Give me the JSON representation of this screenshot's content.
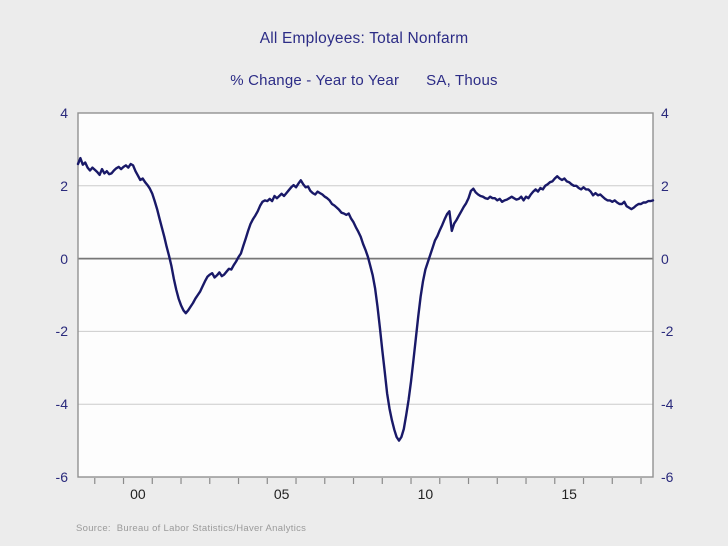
{
  "chart_data": {
    "type": "line",
    "title": "All Employees: Total Nonfarm",
    "subtitle_left": "% Change - Year to Year",
    "subtitle_right": "SA, Thous",
    "source": "Source:  Bureau of Labor Statistics/Haver Analytics",
    "xlabel": "",
    "ylabel": "",
    "ylim": [
      -6,
      4
    ],
    "xlim": [
      1998.4167,
      2018.4167
    ],
    "grid": "horizontal-only",
    "legend": "none",
    "yticks": [
      4,
      2,
      0,
      -2,
      -4,
      -6
    ],
    "ytick_labels": [
      "4",
      "2",
      "0",
      "-2",
      "-4",
      "-6"
    ],
    "yticks_both_sides": true,
    "xticks_minor": [
      1999,
      2000,
      2001,
      2002,
      2003,
      2004,
      2005,
      2006,
      2007,
      2008,
      2009,
      2010,
      2011,
      2012,
      2013,
      2014,
      2015,
      2016,
      2017,
      2018
    ],
    "xtick_labels": [
      {
        "label": "00",
        "x": 2000.5
      },
      {
        "label": "05",
        "x": 2005.5
      },
      {
        "label": "10",
        "x": 2010.5
      },
      {
        "label": "15",
        "x": 2015.5
      }
    ],
    "colors": {
      "line": "#191968",
      "title": "#2c2c86",
      "y_labels": "#2a2a7c",
      "x_labels": "#222222",
      "page_bg": "#ececec",
      "plot_bg": "#fdfdfd",
      "grid": "#cbcbcb",
      "zero_line": "#777777",
      "frame": "#919191",
      "source": "#9a9a9a"
    },
    "series": [
      {
        "name": "All Employees: Total Nonfarm, % Change Year to Year (SA)",
        "color": "#191968",
        "frequency": "monthly",
        "x_start": 1998.4167,
        "x_step": 0.0833333,
        "values": [
          2.6,
          2.76,
          2.58,
          2.64,
          2.5,
          2.42,
          2.5,
          2.44,
          2.38,
          2.3,
          2.46,
          2.34,
          2.4,
          2.32,
          2.34,
          2.42,
          2.48,
          2.52,
          2.46,
          2.52,
          2.56,
          2.5,
          2.6,
          2.56,
          2.4,
          2.28,
          2.16,
          2.2,
          2.1,
          2.02,
          1.92,
          1.78,
          1.58,
          1.36,
          1.1,
          0.85,
          0.6,
          0.33,
          0.08,
          -0.2,
          -0.55,
          -0.85,
          -1.1,
          -1.28,
          -1.42,
          -1.5,
          -1.42,
          -1.32,
          -1.22,
          -1.1,
          -1.0,
          -0.9,
          -0.76,
          -0.62,
          -0.5,
          -0.44,
          -0.4,
          -0.52,
          -0.46,
          -0.38,
          -0.48,
          -0.44,
          -0.36,
          -0.28,
          -0.3,
          -0.18,
          -0.08,
          0.04,
          0.14,
          0.35,
          0.55,
          0.76,
          0.95,
          1.08,
          1.18,
          1.3,
          1.45,
          1.56,
          1.6,
          1.58,
          1.64,
          1.58,
          1.72,
          1.66,
          1.72,
          1.78,
          1.72,
          1.8,
          1.88,
          1.96,
          2.02,
          1.96,
          2.06,
          2.15,
          2.04,
          1.96,
          1.98,
          1.86,
          1.8,
          1.76,
          1.84,
          1.8,
          1.76,
          1.7,
          1.66,
          1.6,
          1.5,
          1.46,
          1.4,
          1.34,
          1.26,
          1.24,
          1.2,
          1.24,
          1.1,
          1.0,
          0.86,
          0.74,
          0.6,
          0.4,
          0.24,
          0.05,
          -0.2,
          -0.46,
          -0.82,
          -1.32,
          -1.9,
          -2.52,
          -3.1,
          -3.7,
          -4.12,
          -4.44,
          -4.7,
          -4.9,
          -5.0,
          -4.9,
          -4.68,
          -4.3,
          -3.88,
          -3.38,
          -2.8,
          -2.2,
          -1.6,
          -1.05,
          -0.62,
          -0.3,
          -0.1,
          0.1,
          0.3,
          0.5,
          0.62,
          0.78,
          0.92,
          1.08,
          1.22,
          1.3,
          0.76,
          0.96,
          1.06,
          1.18,
          1.3,
          1.42,
          1.52,
          1.66,
          1.86,
          1.92,
          1.82,
          1.76,
          1.72,
          1.7,
          1.66,
          1.64,
          1.7,
          1.66,
          1.66,
          1.6,
          1.64,
          1.56,
          1.6,
          1.62,
          1.66,
          1.7,
          1.66,
          1.62,
          1.64,
          1.7,
          1.6,
          1.7,
          1.66,
          1.76,
          1.84,
          1.9,
          1.84,
          1.94,
          1.9,
          2.0,
          2.04,
          2.1,
          2.12,
          2.2,
          2.26,
          2.2,
          2.16,
          2.2,
          2.12,
          2.1,
          2.04,
          2.0,
          2.0,
          1.94,
          1.9,
          1.96,
          1.9,
          1.9,
          1.84,
          1.74,
          1.8,
          1.74,
          1.76,
          1.7,
          1.64,
          1.6,
          1.6,
          1.56,
          1.6,
          1.54,
          1.5,
          1.5,
          1.56,
          1.44,
          1.4,
          1.36,
          1.4,
          1.46,
          1.5,
          1.5,
          1.54,
          1.54,
          1.58,
          1.58,
          1.6
        ]
      }
    ]
  }
}
